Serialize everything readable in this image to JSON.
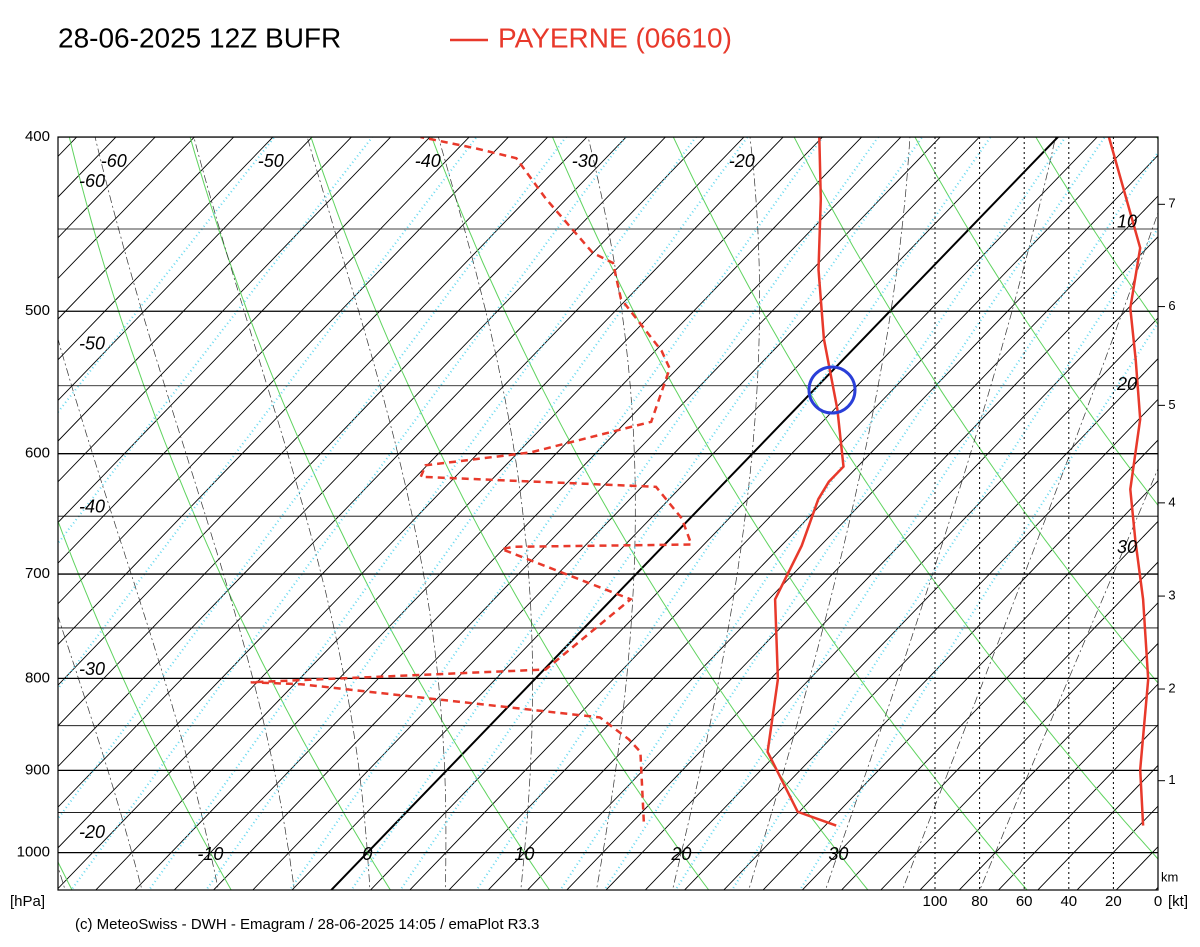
{
  "chart_data": {
    "type": "emagram",
    "title": "28-06-2025 12Z BUFR",
    "legend": "PAYERNE (06610)",
    "footer": "(c) MeteoSwiss - DWH - Emagram / 28-06-2025  14:05 / emaPlot R3.3",
    "y_label": "[hPa]",
    "ylog": true,
    "ylim": [
      1049,
      400
    ],
    "yticks": [
      1000,
      900,
      800,
      700,
      600,
      500,
      400
    ],
    "ygrid_minor": [
      950,
      850,
      750,
      650,
      550,
      450
    ],
    "temperature_labels_bottom": [
      -10,
      0,
      10,
      20,
      30
    ],
    "temperature_labels_top": [
      -60,
      -50,
      -40,
      -30,
      -20
    ],
    "temperature_labels_left": [
      -60,
      -50,
      -40,
      -30,
      -20
    ],
    "temperature_labels_right": [
      10,
      20,
      30
    ],
    "height_label": "km",
    "height_ticks": [
      {
        "value": 912,
        "label": "1"
      },
      {
        "value": 811,
        "label": "2"
      },
      {
        "value": 720,
        "label": "3"
      },
      {
        "value": 639,
        "label": "4"
      },
      {
        "value": 564,
        "label": "5"
      },
      {
        "value": 497,
        "label": "6"
      },
      {
        "value": 436,
        "label": "7"
      }
    ],
    "wind_label": "[kt]",
    "wind_xlim": [
      100,
      0
    ],
    "wind_ticks": [
      100,
      80,
      60,
      40,
      20,
      0
    ],
    "series": [
      {
        "name": "temperature",
        "color": "#e8392b",
        "style": "solid",
        "axis": "temperature",
        "pressure": [
          966,
          949,
          879,
          801,
          723,
          675,
          636,
          622,
          610,
          567,
          518,
          474,
          433,
          400
        ],
        "values": [
          28.2,
          24.9,
          19.3,
          15.5,
          10.4,
          8.8,
          7.0,
          6.6,
          6.6,
          2.7,
          -2.5,
          -7.1,
          -11.3,
          -15.2
        ]
      },
      {
        "name": "dewpoint",
        "color": "#e8392b",
        "style": "dashed",
        "axis": "temperature",
        "pressure": [
          961,
          879,
          865,
          841,
          806,
          804,
          791,
          723,
          712,
          678,
          676,
          674,
          652,
          626,
          618,
          609,
          599,
          576,
          538,
          526,
          492,
          470,
          464,
          433,
          411,
          406,
          400
        ],
        "values": [
          15.7,
          11.2,
          9.7,
          6.5,
          -14.6,
          -17.9,
          0.1,
          1.2,
          -1.5,
          -10.1,
          -9.5,
          1.7,
          -0.5,
          -4.1,
          -19.7,
          -20.1,
          -14.2,
          -8.4,
          -10.5,
          -12.1,
          -17.9,
          -20.6,
          -22.5,
          -28.8,
          -33.2,
          -36.3,
          -40.6
        ]
      },
      {
        "name": "wind speed",
        "color": "#e8392b",
        "style": "solid",
        "axis": "wind",
        "pressure": [
          966,
          899,
          801,
          723,
          670,
          628,
          574,
          532,
          498,
          461,
          400
        ],
        "values": [
          6.7,
          8,
          4.4,
          6.7,
          10.2,
          12.4,
          8,
          10,
          12.4,
          8,
          22
        ]
      }
    ]
  }
}
